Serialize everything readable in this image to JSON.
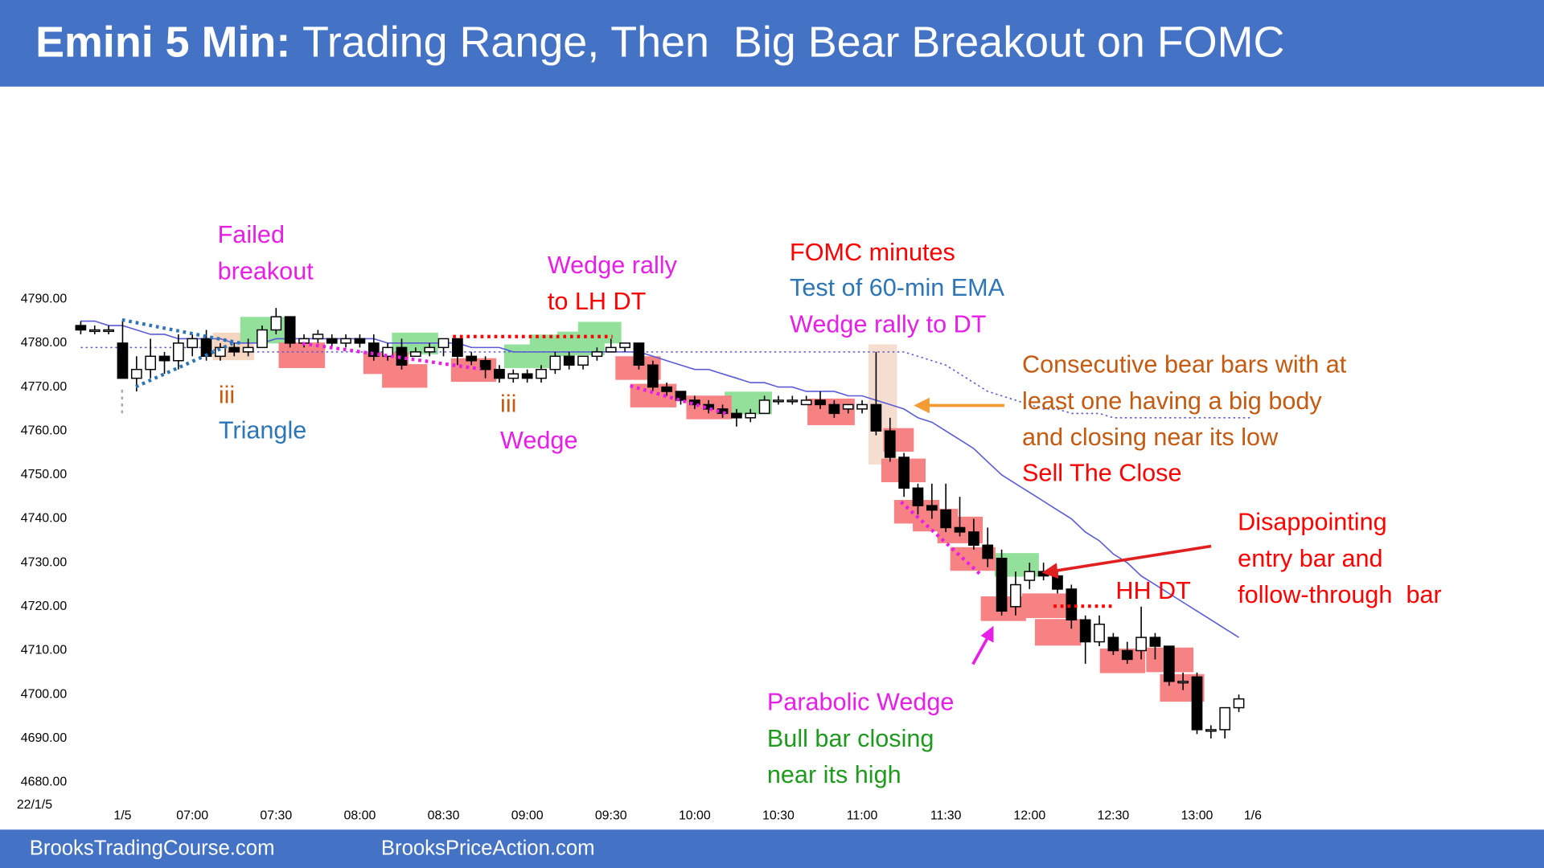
{
  "chart_data": {
    "type": "candlestick",
    "title_lead": "Emini 5 Min:",
    "title": "Trading Range, Then  Big Bear Breakout on FOMC",
    "date_label": "22/1/5",
    "categories": [
      null,
      null,
      null,
      "1/5",
      null,
      null,
      null,
      null,
      "07:00",
      null,
      null,
      null,
      null,
      null,
      "07:30",
      null,
      null,
      null,
      null,
      null,
      "08:00",
      null,
      null,
      null,
      null,
      null,
      "08:30",
      null,
      null,
      null,
      null,
      null,
      "09:00",
      null,
      null,
      null,
      null,
      null,
      "09:30",
      null,
      null,
      null,
      null,
      null,
      "10:00",
      null,
      null,
      null,
      null,
      null,
      "10:30",
      null,
      null,
      null,
      null,
      null,
      "11:00",
      null,
      null,
      null,
      null,
      null,
      "11:30",
      null,
      null,
      null,
      null,
      null,
      "12:00",
      null,
      null,
      null,
      null,
      null,
      "12:30",
      null,
      null,
      null,
      null,
      null,
      "13:00",
      null,
      null,
      null,
      "1/6"
    ],
    "open": [
      4784,
      4783,
      4783,
      4780,
      4772,
      4774,
      4777,
      4776,
      4779,
      4781,
      4777,
      4779,
      4778,
      4779,
      4783,
      4786,
      4780,
      4781,
      4781,
      4780,
      4781,
      4780,
      4777,
      4779,
      4777,
      4778,
      4779,
      4781,
      4777,
      4776,
      4774,
      4772,
      4773,
      4772,
      4774,
      4777,
      4775,
      4777,
      4778,
      4779,
      4780,
      4775,
      4770,
      4769,
      4767,
      4766,
      4765,
      4764,
      4763,
      4764,
      4767,
      4767,
      4766,
      4767,
      4766,
      4765,
      4765,
      4766,
      4760,
      4754,
      4747,
      4743,
      4742,
      4738,
      4737,
      4734,
      4731,
      4720,
      4726,
      4728,
      4727,
      4724,
      4717,
      4712,
      4713,
      4710,
      4710,
      4713,
      4711,
      4703,
      4704,
      4692,
      4692,
      4697,
      null
    ],
    "high": [
      4785,
      4784,
      4784,
      4785,
      4777,
      4781,
      4778,
      4782,
      4782,
      4783,
      4780,
      4780,
      4781,
      4784,
      4788,
      4786,
      4782,
      4783,
      4782,
      4782,
      4782,
      4782,
      4780,
      4781,
      4779,
      4780,
      4781,
      4781,
      4778,
      4777,
      4775,
      4774,
      4774,
      4775,
      4778,
      4778,
      4777,
      4779,
      4781,
      4780,
      4780,
      4776,
      4771,
      4769,
      4768,
      4767,
      4766,
      4765,
      4765,
      4768,
      4768,
      4768,
      4768,
      4769,
      4767,
      4766,
      4767,
      4778,
      4763,
      4755,
      4748,
      4748,
      4748,
      4745,
      4740,
      4738,
      4733,
      4728,
      4730,
      4730,
      4728,
      4725,
      4718,
      4718,
      4714,
      4712,
      4720,
      4714,
      4711,
      4705,
      4705,
      4693,
      4697,
      4700,
      null
    ],
    "low": [
      4782,
      4782,
      4782,
      4772,
      4769,
      4772,
      4773,
      4774,
      4777,
      4776,
      4776,
      4777,
      4777,
      4779,
      4782,
      4779,
      4779,
      4780,
      4779,
      4779,
      4779,
      4776,
      4776,
      4774,
      4777,
      4777,
      4777,
      4775,
      4775,
      4772,
      4771,
      4771,
      4771,
      4771,
      4773,
      4774,
      4774,
      4776,
      4778,
      4778,
      4774,
      4769,
      4768,
      4766,
      4765,
      4764,
      4763,
      4761,
      4762,
      4764,
      4766,
      4766,
      4766,
      4765,
      4763,
      4764,
      4764,
      4759,
      4753,
      4745,
      4741,
      4740,
      4737,
      4736,
      4733,
      4729,
      4718,
      4718,
      4724,
      4726,
      4723,
      4715,
      4707,
      4711,
      4709,
      4707,
      4708,
      4708,
      4702,
      4701,
      4691,
      4690,
      4690,
      4696,
      null
    ],
    "close": [
      4783,
      4783,
      4783,
      4772,
      4774,
      4777,
      4776,
      4780,
      4781,
      4777,
      4779,
      4778,
      4779,
      4783,
      4786,
      4780,
      4781,
      4782,
      4780,
      4781,
      4780,
      4777,
      4779,
      4775,
      4778,
      4779,
      4781,
      4777,
      4776,
      4774,
      4772,
      4773,
      4772,
      4774,
      4777,
      4775,
      4777,
      4778,
      4779,
      4780,
      4775,
      4770,
      4769,
      4767,
      4766,
      4765,
      4764,
      4763,
      4764,
      4767,
      4767,
      4767,
      4767,
      4766,
      4764,
      4766,
      4766,
      4760,
      4754,
      4747,
      4743,
      4742,
      4738,
      4737,
      4734,
      4731,
      4719,
      4725,
      4728,
      4727,
      4724,
      4717,
      4712,
      4716,
      4710,
      4708,
      4713,
      4711,
      4703,
      4703,
      4692,
      4692,
      4697,
      4699,
      null
    ],
    "up_color": "#ffffff",
    "down_color": "#000000",
    "lines": [
      {
        "color": "#5b5bd6",
        "style": "solid",
        "values": [
          4785,
          4785,
          4784,
          4784,
          4783,
          4782,
          4782,
          4781,
          4781,
          4781,
          4781,
          4780,
          4780,
          4780,
          4781,
          4781,
          4781,
          4781,
          4781,
          4781,
          4781,
          4781,
          4780,
          4780,
          4780,
          4780,
          4780,
          4780,
          4779,
          4779,
          4779,
          4778,
          4778,
          4778,
          4778,
          4778,
          4778,
          4778,
          4778,
          4778,
          4778,
          4777,
          4776,
          4775,
          4774,
          4774,
          4773,
          4772,
          4771,
          4771,
          4770,
          4770,
          4769,
          4769,
          4769,
          4768,
          4768,
          4767,
          4766,
          4765,
          4763,
          4762,
          4760,
          4758,
          4756,
          4753,
          4750,
          4748,
          4746,
          4744,
          4742,
          4740,
          4737,
          4735,
          4732,
          4730,
          4727,
          4725,
          4723,
          4721,
          4719,
          4717,
          4715,
          4713,
          null
        ]
      },
      {
        "color": "#5b5bd6",
        "style": "dotted",
        "values": [
          4779,
          4779,
          4779,
          4779,
          4779,
          4779,
          4779,
          4779,
          4779,
          4779,
          4778,
          4778,
          4778,
          4778,
          4778,
          4778,
          4778,
          4778,
          4778,
          4778,
          4778,
          4778,
          4778,
          4778,
          4778,
          4778,
          4778,
          4778,
          4778,
          4778,
          4778,
          4778,
          4778,
          4778,
          4778,
          4778,
          4778,
          4778,
          4778,
          4778,
          4778,
          4778,
          4778,
          4778,
          4778,
          4778,
          4778,
          4778,
          4778,
          4778,
          4778,
          4778,
          4778,
          4778,
          4778,
          4778,
          4778,
          4778,
          4778,
          4778,
          4777,
          4776,
          4775,
          4773,
          4771,
          4769,
          4768,
          4767,
          4766,
          4765,
          4765,
          4764,
          4764,
          4764,
          4763,
          4763,
          4763,
          4763,
          4763,
          4763,
          4763,
          4763,
          4763,
          4763,
          4763
        ]
      }
    ],
    "ylim": [
      4680,
      4790
    ],
    "yticks": [
      {
        "value": 4680,
        "label": "4680.00"
      },
      {
        "value": 4690,
        "label": "4690.00"
      },
      {
        "value": 4700,
        "label": "4700.00"
      },
      {
        "value": 4710,
        "label": "4710.00"
      },
      {
        "value": 4720,
        "label": "4720.00"
      },
      {
        "value": 4730,
        "label": "4730.00"
      },
      {
        "value": 4740,
        "label": "4740.00"
      },
      {
        "value": 4750,
        "label": "4750.00"
      },
      {
        "value": 4760,
        "label": "4760.00"
      },
      {
        "value": 4770,
        "label": "4770.00"
      },
      {
        "value": 4780,
        "label": "4780.00"
      },
      {
        "value": 4790,
        "label": "4790.00"
      }
    ],
    "grid": false,
    "annotations": [
      {
        "text": "Failed",
        "color": "#e61ee6"
      },
      {
        "text": "breakout",
        "color": "#e61ee6"
      },
      {
        "text": "iii",
        "color": "#c55a11"
      },
      {
        "text": "Triangle",
        "color": "#2e75b6"
      },
      {
        "text": "Wedge rally",
        "color": "#e61ee6"
      },
      {
        "text": "to LH DT",
        "color": "#ff0000"
      },
      {
        "text": "iii",
        "color": "#c55a11"
      },
      {
        "text": "Wedge",
        "color": "#e61ee6"
      },
      {
        "text": "FOMC minutes",
        "color": "#ff0000"
      },
      {
        "text": "Test of 60-min EMA",
        "color": "#2e75b6"
      },
      {
        "text": "Wedge rally to DT",
        "color": "#e61ee6"
      },
      {
        "text": "Consecutive bear bars with at",
        "color": "#c55a11"
      },
      {
        "text": "least one having a big body",
        "color": "#c55a11"
      },
      {
        "text": "and closing near its low",
        "color": "#c55a11"
      },
      {
        "text": "Sell The Close",
        "color": "#ff0000"
      },
      {
        "text": "Disappointing",
        "color": "#ff0000"
      },
      {
        "text": "entry bar and",
        "color": "#ff0000"
      },
      {
        "text": "follow-through  bar",
        "color": "#ff0000"
      },
      {
        "text": "HH DT",
        "color": "#ff0000"
      },
      {
        "text": "Parabolic Wedge",
        "color": "#e61ee6"
      },
      {
        "text": "Bull bar closing",
        "color": "#1f9a1f"
      },
      {
        "text": "near its high",
        "color": "#1f9a1f"
      }
    ]
  },
  "footer": {
    "left": "BrooksTradingCourse.com",
    "right": "BrooksPriceAction.com"
  }
}
